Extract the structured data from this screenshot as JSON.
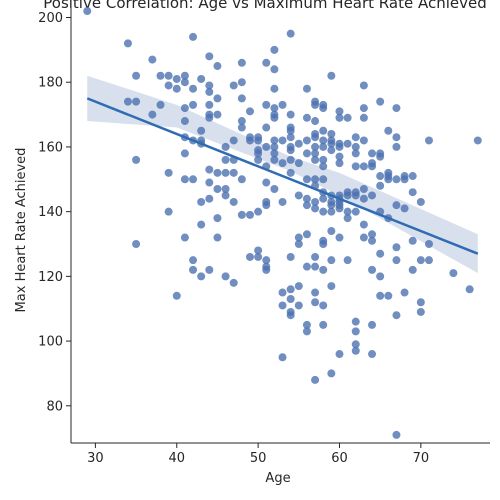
{
  "chart_data": {
    "type": "scatter",
    "title": "Positive Correlation: Age vs Maximum Heart Rate Achieved",
    "xlabel": "Age",
    "ylabel": "Max Heart Rate Achieved",
    "xlim": [
      27,
      78.5
    ],
    "ylim": [
      68.5,
      208.5
    ],
    "x_ticks": [
      30,
      40,
      50,
      60,
      70
    ],
    "y_ticks": [
      80,
      100,
      120,
      140,
      160,
      180,
      200
    ],
    "grid": false,
    "legend": "none",
    "colors": {
      "points": "#4C72B0",
      "line": "#2F6CB3",
      "band": "#4C72B0"
    },
    "regression": {
      "x": [
        29,
        77
      ],
      "y": [
        175,
        127
      ],
      "ci_lower": [
        [
          29,
          168
        ],
        [
          40,
          166
        ],
        [
          54,
          152.5
        ],
        [
          60,
          145
        ],
        [
          77,
          121
        ]
      ],
      "ci_upper": [
        [
          29,
          182
        ],
        [
          40,
          173
        ],
        [
          54,
          157
        ],
        [
          60,
          152
        ],
        [
          77,
          133
        ]
      ]
    },
    "points": [
      [
        29,
        202
      ],
      [
        34,
        192
      ],
      [
        34,
        174
      ],
      [
        35,
        182
      ],
      [
        35,
        174
      ],
      [
        35,
        156
      ],
      [
        35,
        130
      ],
      [
        37,
        187
      ],
      [
        37,
        170
      ],
      [
        38,
        182
      ],
      [
        38,
        173
      ],
      [
        39,
        182
      ],
      [
        39,
        179
      ],
      [
        39,
        152
      ],
      [
        39,
        140
      ],
      [
        40,
        181
      ],
      [
        40,
        178
      ],
      [
        40,
        114
      ],
      [
        41,
        182
      ],
      [
        41,
        180
      ],
      [
        41,
        172
      ],
      [
        41,
        168
      ],
      [
        41,
        163
      ],
      [
        41,
        158
      ],
      [
        41,
        150
      ],
      [
        41,
        132
      ],
      [
        42,
        194
      ],
      [
        42,
        178
      ],
      [
        42,
        173
      ],
      [
        42,
        162
      ],
      [
        42,
        150
      ],
      [
        42,
        125
      ],
      [
        42,
        122
      ],
      [
        43,
        181
      ],
      [
        43,
        165
      ],
      [
        43,
        162
      ],
      [
        43,
        161
      ],
      [
        43,
        143
      ],
      [
        43,
        136
      ],
      [
        43,
        120
      ],
      [
        44,
        188
      ],
      [
        44,
        179
      ],
      [
        44,
        177
      ],
      [
        44,
        173
      ],
      [
        44,
        170
      ],
      [
        44,
        169
      ],
      [
        44,
        153
      ],
      [
        44,
        149
      ],
      [
        44,
        144
      ],
      [
        44,
        122
      ],
      [
        45,
        185
      ],
      [
        45,
        175
      ],
      [
        45,
        170
      ],
      [
        45,
        152
      ],
      [
        45,
        147
      ],
      [
        45,
        138
      ],
      [
        45,
        132
      ],
      [
        46,
        160
      ],
      [
        46,
        156
      ],
      [
        46,
        152
      ],
      [
        46,
        147
      ],
      [
        46,
        145
      ],
      [
        46,
        120
      ],
      [
        47,
        179
      ],
      [
        47,
        162
      ],
      [
        47,
        156
      ],
      [
        47,
        152
      ],
      [
        47,
        143
      ],
      [
        47,
        118
      ],
      [
        48,
        186
      ],
      [
        48,
        180
      ],
      [
        48,
        175
      ],
      [
        48,
        168
      ],
      [
        48,
        166
      ],
      [
        48,
        150
      ],
      [
        48,
        139
      ],
      [
        49,
        171
      ],
      [
        49,
        163
      ],
      [
        49,
        162
      ],
      [
        49,
        139
      ],
      [
        49,
        126
      ],
      [
        50,
        163
      ],
      [
        50,
        162
      ],
      [
        50,
        159
      ],
      [
        50,
        158
      ],
      [
        50,
        156
      ],
      [
        50,
        140
      ],
      [
        50,
        128
      ],
      [
        50,
        126
      ],
      [
        51,
        186
      ],
      [
        51,
        173
      ],
      [
        51,
        166
      ],
      [
        51,
        160
      ],
      [
        51,
        154
      ],
      [
        51,
        149
      ],
      [
        51,
        143
      ],
      [
        51,
        142
      ],
      [
        51,
        125
      ],
      [
        51,
        123
      ],
      [
        51,
        122
      ],
      [
        52,
        190
      ],
      [
        52,
        184
      ],
      [
        52,
        178
      ],
      [
        52,
        172
      ],
      [
        52,
        170
      ],
      [
        52,
        169
      ],
      [
        52,
        162
      ],
      [
        52,
        160
      ],
      [
        52,
        158
      ],
      [
        52,
        156
      ],
      [
        52,
        147
      ],
      [
        53,
        173
      ],
      [
        53,
        162
      ],
      [
        53,
        155
      ],
      [
        53,
        143
      ],
      [
        53,
        115
      ],
      [
        53,
        111
      ],
      [
        53,
        95
      ],
      [
        54,
        195
      ],
      [
        54,
        170
      ],
      [
        54,
        166
      ],
      [
        54,
        165
      ],
      [
        54,
        163
      ],
      [
        54,
        160
      ],
      [
        54,
        159
      ],
      [
        54,
        156
      ],
      [
        54,
        152
      ],
      [
        54,
        126
      ],
      [
        54,
        116
      ],
      [
        54,
        113
      ],
      [
        54,
        109
      ],
      [
        54,
        108
      ],
      [
        55,
        161
      ],
      [
        55,
        155
      ],
      [
        55,
        145
      ],
      [
        55,
        132
      ],
      [
        55,
        130
      ],
      [
        55,
        117
      ],
      [
        55,
        111
      ],
      [
        56,
        178
      ],
      [
        56,
        169
      ],
      [
        56,
        162
      ],
      [
        56,
        158
      ],
      [
        56,
        150
      ],
      [
        56,
        144
      ],
      [
        56,
        142
      ],
      [
        56,
        133
      ],
      [
        56,
        123
      ],
      [
        56,
        105
      ],
      [
        56,
        103
      ],
      [
        57,
        174
      ],
      [
        57,
        173
      ],
      [
        57,
        168
      ],
      [
        57,
        164
      ],
      [
        57,
        163
      ],
      [
        57,
        160
      ],
      [
        57,
        158
      ],
      [
        57,
        156
      ],
      [
        57,
        150
      ],
      [
        57,
        148
      ],
      [
        57,
        143
      ],
      [
        57,
        141
      ],
      [
        57,
        126
      ],
      [
        57,
        123
      ],
      [
        57,
        115
      ],
      [
        57,
        112
      ],
      [
        57,
        88
      ],
      [
        58,
        173
      ],
      [
        58,
        172
      ],
      [
        58,
        165
      ],
      [
        58,
        162
      ],
      [
        58,
        160
      ],
      [
        58,
        156
      ],
      [
        58,
        154
      ],
      [
        58,
        150
      ],
      [
        58,
        146
      ],
      [
        58,
        144
      ],
      [
        58,
        140
      ],
      [
        58,
        131
      ],
      [
        58,
        130
      ],
      [
        58,
        122
      ],
      [
        58,
        111
      ],
      [
        58,
        105
      ],
      [
        59,
        182
      ],
      [
        59,
        164
      ],
      [
        59,
        162
      ],
      [
        59,
        161
      ],
      [
        59,
        159
      ],
      [
        59,
        145
      ],
      [
        59,
        143
      ],
      [
        59,
        142
      ],
      [
        59,
        140
      ],
      [
        59,
        134
      ],
      [
        59,
        125
      ],
      [
        59,
        117
      ],
      [
        59,
        90
      ],
      [
        60,
        171
      ],
      [
        60,
        169
      ],
      [
        60,
        161
      ],
      [
        60,
        160
      ],
      [
        60,
        157
      ],
      [
        60,
        155
      ],
      [
        60,
        145
      ],
      [
        60,
        144
      ],
      [
        60,
        143
      ],
      [
        60,
        142
      ],
      [
        60,
        141
      ],
      [
        60,
        132
      ],
      [
        60,
        96
      ],
      [
        61,
        169
      ],
      [
        61,
        161
      ],
      [
        61,
        146
      ],
      [
        61,
        145
      ],
      [
        61,
        140
      ],
      [
        61,
        138
      ],
      [
        61,
        125
      ],
      [
        62,
        163
      ],
      [
        62,
        160
      ],
      [
        62,
        158
      ],
      [
        62,
        154
      ],
      [
        62,
        146
      ],
      [
        62,
        145
      ],
      [
        62,
        140
      ],
      [
        62,
        106
      ],
      [
        62,
        103
      ],
      [
        62,
        99
      ],
      [
        62,
        97
      ],
      [
        63,
        179
      ],
      [
        63,
        172
      ],
      [
        63,
        169
      ],
      [
        63,
        162
      ],
      [
        63,
        154
      ],
      [
        63,
        147
      ],
      [
        63,
        144
      ],
      [
        63,
        136
      ],
      [
        63,
        132
      ],
      [
        64,
        158
      ],
      [
        64,
        155
      ],
      [
        64,
        154
      ],
      [
        64,
        145
      ],
      [
        64,
        133
      ],
      [
        64,
        131
      ],
      [
        64,
        122
      ],
      [
        64,
        105
      ],
      [
        64,
        96
      ],
      [
        65,
        174
      ],
      [
        65,
        158
      ],
      [
        65,
        157
      ],
      [
        65,
        151
      ],
      [
        65,
        148
      ],
      [
        65,
        140
      ],
      [
        65,
        127
      ],
      [
        65,
        120
      ],
      [
        65,
        114
      ],
      [
        66,
        165
      ],
      [
        66,
        152
      ],
      [
        66,
        151
      ],
      [
        66,
        150
      ],
      [
        66,
        138
      ],
      [
        66,
        114
      ],
      [
        67,
        172
      ],
      [
        67,
        163
      ],
      [
        67,
        160
      ],
      [
        67,
        150
      ],
      [
        67,
        142
      ],
      [
        67,
        129
      ],
      [
        67,
        125
      ],
      [
        67,
        108
      ],
      [
        67,
        71
      ],
      [
        68,
        151
      ],
      [
        68,
        150
      ],
      [
        68,
        141
      ],
      [
        68,
        115
      ],
      [
        69,
        151
      ],
      [
        69,
        146
      ],
      [
        69,
        131
      ],
      [
        69,
        122
      ],
      [
        70,
        143
      ],
      [
        70,
        125
      ],
      [
        70,
        112
      ],
      [
        70,
        109
      ],
      [
        71,
        162
      ],
      [
        71,
        130
      ],
      [
        71,
        125
      ],
      [
        74,
        121
      ],
      [
        76,
        116
      ],
      [
        77,
        162
      ]
    ]
  }
}
